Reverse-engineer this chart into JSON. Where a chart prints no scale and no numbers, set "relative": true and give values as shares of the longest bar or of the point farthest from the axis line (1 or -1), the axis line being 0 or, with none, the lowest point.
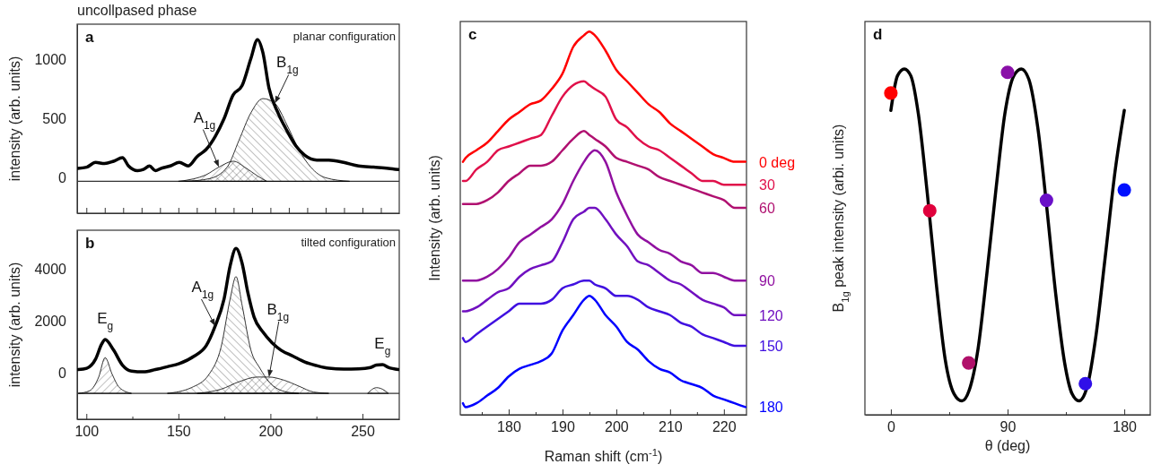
{
  "chart_data": [
    {
      "type": "line",
      "title": "uncollpased phase",
      "ylabel": "intensity (arb. units)",
      "xlim": [
        95,
        270
      ],
      "ylim": [
        -300,
        1300
      ],
      "xticks": [
        100,
        110,
        120,
        130,
        140,
        150,
        160,
        170,
        180,
        190,
        200,
        210,
        220,
        230,
        240,
        250,
        260
      ],
      "yticks": [
        0,
        500,
        1000
      ],
      "tick_labels": "y",
      "annotations": [
        "a",
        "planar configuration",
        {
          "text": "A$_{1g}$",
          "x": 172,
          "y": 90
        },
        {
          "text": "B$_{1g}$",
          "x": 202.4,
          "y": 630
        }
      ],
      "ref_lines": [
        {
          "axis": "y",
          "value": -30,
          "color": "#333333"
        }
      ],
      "series": [
        {
          "type": "area",
          "color": "#000000",
          "x": [
            150,
            158,
            165,
            172,
            180,
            186,
            193,
            198
          ],
          "values": [
            -30,
            -10,
            25,
            90,
            140,
            90,
            15,
            -30
          ]
        },
        {
          "type": "area",
          "color": "#000000",
          "x": [
            153.7,
            166.7,
            176.5,
            183,
            189.4,
            195.9,
            202.4,
            208.9,
            215.4,
            221.9,
            230,
            243
          ],
          "values": [
            -30,
            -8,
            90,
            320,
            550,
            670,
            630,
            450,
            240,
            90,
            0,
            -30
          ]
        },
        {
          "color": "#000000",
          "x": [
            95.3,
            100.2,
            105,
            109.9,
            114.8,
            119.6,
            122.9,
            127.8,
            131,
            134.3,
            137.5,
            140.7,
            145.6,
            150.5,
            155.4,
            160.2,
            165.1,
            170,
            174.8,
            179.7,
            184.6,
            189.4,
            193,
            195.9,
            199.2,
            204.1,
            208.9,
            213.8,
            218.7,
            225.2,
            231.7,
            239.8,
            247.9,
            256,
            264.1,
            269.5
          ],
          "values": [
            80,
            90,
            130,
            120,
            140,
            170,
            100,
            60,
            70,
            100,
            60,
            80,
            100,
            130,
            100,
            180,
            240,
            350,
            500,
            700,
            780,
            1010,
            1170,
            1060,
            760,
            550,
            400,
            270,
            190,
            150,
            150,
            130,
            100,
            90,
            80,
            70
          ]
        }
      ]
    },
    {
      "type": "line",
      "ylabel": "intensity (arb. units)",
      "xlim": [
        95,
        270
      ],
      "ylim": [
        -1800,
        5500
      ],
      "xticks": [
        100,
        {
          "value": 125,
          "label": null
        },
        150,
        {
          "value": 175,
          "label": null
        },
        200,
        {
          "value": 225,
          "label": null
        },
        250
      ],
      "yticks": [
        0,
        2000,
        4000
      ],
      "annotations": [
        "b",
        "tilted configuration",
        {
          "text": "E$_{g}$",
          "x": 110.2,
          "y": 1280
        },
        {
          "text": "A$_{1g}$",
          "x": 170,
          "y": 1800
        },
        {
          "text": "B$_{1g}$",
          "x": 199.2,
          "y": -170
        },
        {
          "text": "E$_{g}$",
          "x": 260.9,
          "y": 310
        }
      ],
      "ref_lines": [
        {
          "axis": "y",
          "value": -800,
          "color": "#333333"
        }
      ],
      "series": [
        {
          "type": "area",
          "color": "#000000",
          "x": [
            95.6,
            101.8,
            106.7,
            110.2,
            114,
            118,
            124.5
          ],
          "values": [
            -800,
            -700,
            -170,
            580,
            -60,
            -580,
            -800
          ]
        },
        {
          "type": "area",
          "color": "#000000",
          "x": [
            144,
            157,
            166.7,
            173.2,
            178.1,
            181.3,
            184.6,
            189.4,
            194.3,
            199.2,
            208.9,
            215.4
          ],
          "values": [
            -800,
            -580,
            -60,
            990,
            2840,
            3710,
            2610,
            870,
            170,
            -350,
            -750,
            -800
          ]
        },
        {
          "type": "area",
          "color": "#000000",
          "x": [
            160.2,
            173.2,
            183,
            192.7,
            199.2,
            207.3,
            215.4,
            223.5,
            231.7
          ],
          "values": [
            -800,
            -640,
            -350,
            -170,
            -170,
            -290,
            -520,
            -750,
            -800
          ]
        },
        {
          "type": "area",
          "color": "#000000",
          "x": [
            252.8,
            257.6,
            260.9,
            264.1
          ],
          "values": [
            -800,
            -580,
            -640,
            -800
          ]
        },
        {
          "color": "#000000",
          "x": [
            95.6,
            100.2,
            105,
            108.3,
            110.2,
            114.8,
            119.6,
            124.5,
            131,
            137.5,
            144,
            150.5,
            158.6,
            165.1,
            170,
            174.8,
            178.1,
            181.3,
            184.6,
            187.8,
            191.1,
            195.9,
            200.8,
            205.7,
            212.2,
            218.7,
            225.2,
            231.7,
            239.8,
            247.9,
            254.4,
            257.6,
            260.9,
            264.1,
            269.5
          ],
          "values": [
            120,
            170,
            520,
            1100,
            1280,
            870,
            290,
            60,
            30,
            120,
            230,
            350,
            640,
            1040,
            1800,
            2840,
            4120,
            4800,
            4230,
            3070,
            2150,
            1570,
            1160,
            870,
            640,
            410,
            270,
            170,
            140,
            150,
            200,
            290,
            310,
            200,
            120
          ]
        }
      ]
    },
    {
      "type": "line",
      "relative": true,
      "ylabel": "Intensity (arb. units)",
      "xlabel": "Raman shift (cm$^{-1}$)",
      "xlim": [
        171,
        224.2
      ],
      "xticks": [
        {
          "value": 175,
          "label": null
        },
        180,
        {
          "value": 185,
          "label": null
        },
        190,
        {
          "value": 195,
          "label": null
        },
        200,
        {
          "value": 205,
          "label": null
        },
        210,
        {
          "value": 215,
          "label": null
        },
        220
      ],
      "annotations": [
        "c"
      ],
      "x": [
        171.5,
        172,
        174,
        176,
        178,
        180,
        182,
        184,
        186,
        188,
        190,
        192,
        194,
        195,
        196,
        198,
        200,
        202,
        204,
        206,
        208,
        210,
        212,
        214,
        216,
        218,
        220,
        222,
        224
      ],
      "series": [
        {
          "name": "0 deg",
          "color": "#ff0000",
          "values": [
            0.66,
            0.67,
            0.69,
            0.71,
            0.74,
            0.77,
            0.79,
            0.81,
            0.82,
            0.85,
            0.89,
            0.96,
            0.99,
            1,
            0.99,
            0.95,
            0.9,
            0.87,
            0.84,
            0.81,
            0.79,
            0.76,
            0.74,
            0.72,
            0.7,
            0.68,
            0.67,
            0.66,
            0.66
          ]
        },
        {
          "name": "30",
          "color": "#e0104a",
          "values": [
            0.61,
            0.61,
            0.64,
            0.66,
            0.69,
            0.7,
            0.71,
            0.72,
            0.73,
            0.78,
            0.83,
            0.86,
            0.87,
            0.86,
            0.85,
            0.83,
            0.77,
            0.75,
            0.72,
            0.7,
            0.69,
            0.67,
            0.65,
            0.63,
            0.61,
            0.61,
            0.6,
            0.6,
            0.6
          ]
        },
        {
          "name": "60",
          "color": "#b01070",
          "values": [
            0.55,
            0.55,
            0.55,
            0.56,
            0.58,
            0.61,
            0.63,
            0.65,
            0.65,
            0.66,
            0.69,
            0.72,
            0.74,
            0.73,
            0.72,
            0.7,
            0.67,
            0.66,
            0.65,
            0.64,
            0.62,
            0.61,
            0.6,
            0.59,
            0.58,
            0.57,
            0.56,
            0.54,
            0.54
          ]
        },
        {
          "name": "90",
          "color": "#9010a0",
          "values": [
            0.35,
            0.35,
            0.35,
            0.36,
            0.38,
            0.41,
            0.45,
            0.47,
            0.49,
            0.51,
            0.55,
            0.61,
            0.66,
            0.68,
            0.69,
            0.66,
            0.58,
            0.52,
            0.47,
            0.45,
            0.43,
            0.42,
            0.4,
            0.39,
            0.37,
            0.37,
            0.36,
            0.35,
            0.35
          ]
        },
        {
          "name": "120",
          "color": "#7010c0",
          "values": [
            0.27,
            0.27,
            0.28,
            0.3,
            0.32,
            0.33,
            0.36,
            0.38,
            0.39,
            0.4,
            0.45,
            0.51,
            0.53,
            0.54,
            0.54,
            0.51,
            0.47,
            0.44,
            0.4,
            0.39,
            0.37,
            0.35,
            0.34,
            0.32,
            0.3,
            0.29,
            0.28,
            0.26,
            0.26
          ]
        },
        {
          "name": "150",
          "color": "#4010e0",
          "values": [
            0.2,
            0.19,
            0.21,
            0.23,
            0.25,
            0.27,
            0.29,
            0.29,
            0.29,
            0.3,
            0.33,
            0.34,
            0.35,
            0.35,
            0.34,
            0.33,
            0.31,
            0.31,
            0.3,
            0.28,
            0.27,
            0.26,
            0.24,
            0.23,
            0.21,
            0.2,
            0.19,
            0.18,
            0.18
          ]
        },
        {
          "name": "180",
          "color": "#0000ff",
          "values": [
            0.03,
            0.02,
            0.03,
            0.05,
            0.07,
            0.1,
            0.12,
            0.13,
            0.14,
            0.16,
            0.22,
            0.26,
            0.3,
            0.31,
            0.3,
            0.26,
            0.23,
            0.19,
            0.17,
            0.14,
            0.12,
            0.11,
            0.09,
            0.08,
            0.07,
            0.05,
            0.04,
            0.03,
            0.02
          ]
        }
      ]
    },
    {
      "type": "scatter",
      "relative": true,
      "ylabel": "B$_{1g}$ peak intensity (arbi. units)",
      "xlabel": "θ (deg)",
      "xlim": [
        -20,
        200
      ],
      "xticks": [
        0,
        {
          "value": 45,
          "label": null
        },
        90,
        {
          "value": 135,
          "label": null
        },
        180
      ],
      "annotations": [
        "d"
      ],
      "series": [
        {
          "type": "line",
          "color": "#000000",
          "x": [
            0,
            5.1,
            10.4,
            15.4,
            21.2,
            28.1,
            35,
            41.9,
            48.8,
            54.8,
            60.3,
            67.2,
            74.1,
            81,
            87.9,
            94.8,
            100.6,
            106.4,
            113.3,
            120.2,
            127.1,
            134,
            139.8,
            145.1,
            151.3,
            158.2,
            165.1,
            173.1,
            180
          ],
          "values": [
            0.88,
            0.98,
            1,
            0.98,
            0.87,
            0.64,
            0.38,
            0.16,
            0.06,
            0.04,
            0.07,
            0.19,
            0.41,
            0.65,
            0.87,
            0.98,
            1,
            0.97,
            0.83,
            0.6,
            0.35,
            0.15,
            0.06,
            0.04,
            0.08,
            0.23,
            0.45,
            0.71,
            0.88
          ]
        },
        {
          "marker": "circle",
          "color": "#ff0000",
          "x": [
            0,
            30,
            60,
            90,
            120,
            150,
            180
          ],
          "values": [
            0.93,
            0.59,
            0.15,
            0.99,
            0.62,
            0.09,
            0.65
          ],
          "colors": [
            "#ff0000",
            "#e0003c",
            "#b0106a",
            "#8a10a8",
            "#6a10c8",
            "#3010e8",
            "#0010ff"
          ]
        }
      ]
    }
  ]
}
